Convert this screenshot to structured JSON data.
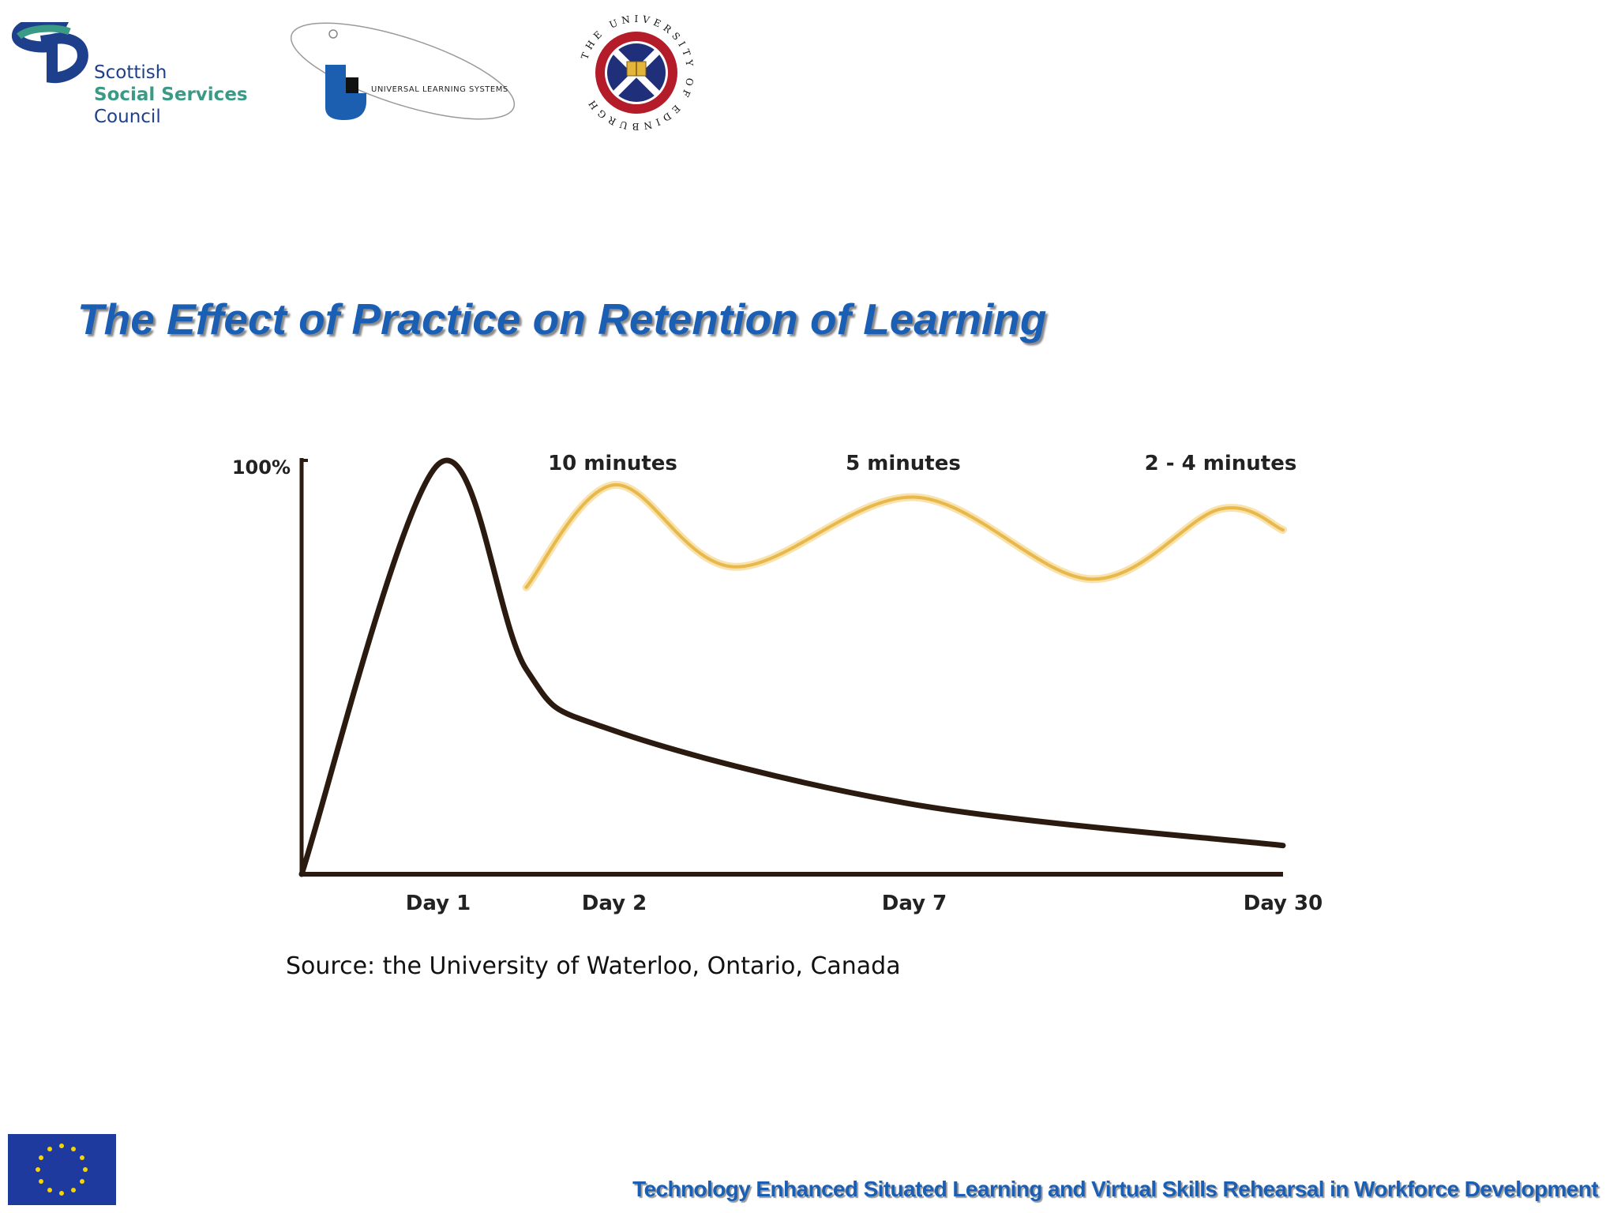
{
  "logos": {
    "sssc": {
      "line1": "Scottish",
      "line2": "Social Services",
      "line3": "Council"
    },
    "uls": {
      "text": "UNIVERSAL LEARNING SYSTEMS"
    },
    "uoe": {
      "text": "THE UNIVERSITY OF EDINBURGH"
    }
  },
  "slide": {
    "title": "The Effect of Practice on Retention of Learning",
    "source": "Source:  the University of Waterloo, Ontario, Canada",
    "footer": "Technology Enhanced Situated Learning and Virtual Skills Rehearsal in Workforce Development"
  },
  "colors": {
    "title": "#1a5fb4",
    "forgetting": "#2a1a10",
    "review": "#e8b84a",
    "eu_flag": "#1e3a9e",
    "eu_stars": "#f5d400"
  },
  "chart_data": {
    "type": "line",
    "title": "",
    "xlabel": "",
    "ylabel": "",
    "y_tick_label": "100%",
    "x_tick_labels": [
      "Day 1",
      "Day 2",
      "Day 7",
      "Day 30"
    ],
    "annotations": [
      "10 minutes",
      "5 minutes",
      "2 - 4 minutes"
    ],
    "ylim": [
      0,
      100
    ],
    "series": [
      {
        "values": [
          [
            0,
            0
          ],
          [
            1,
            100
          ],
          [
            1.5,
            50
          ],
          [
            2,
            35
          ],
          [
            7,
            17
          ],
          [
            30,
            7
          ]
        ]
      },
      {
        "values": [
          [
            1.5,
            70
          ],
          [
            2,
            95
          ],
          [
            4,
            75
          ],
          [
            7,
            92
          ],
          [
            18,
            72
          ],
          [
            26,
            89
          ],
          [
            30,
            84
          ]
        ]
      }
    ]
  }
}
